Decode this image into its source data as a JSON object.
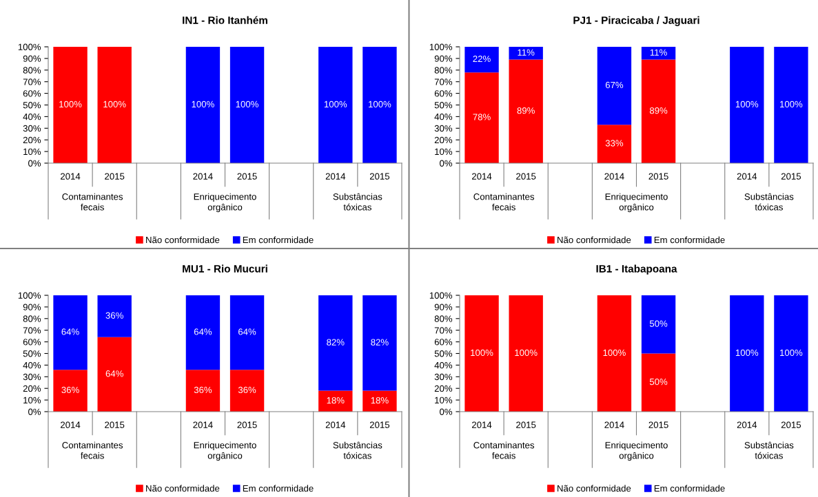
{
  "chart_data": [
    {
      "type": "bar",
      "title": "IN1 - Rio Itanhém",
      "stacked": true,
      "legend": "bottom",
      "grid": false,
      "categories": [
        "2014",
        "2015",
        null,
        "2014",
        "2015",
        null,
        "2014",
        "2015"
      ],
      "annotations": [
        "Contaminantes\nfecais",
        "Enriquecimento\norgânico",
        "Substâncias\ntóxicas"
      ],
      "ylim": [
        0,
        100
      ],
      "yticks": [
        {
          "value": 0,
          "label": "0%"
        },
        {
          "value": 10,
          "label": "10%"
        },
        {
          "value": 20,
          "label": "20%"
        },
        {
          "value": 30,
          "label": "30%"
        },
        {
          "value": 40,
          "label": "40%"
        },
        {
          "value": 50,
          "label": "50%"
        },
        {
          "value": 60,
          "label": "60%"
        },
        {
          "value": 70,
          "label": "70%"
        },
        {
          "value": 80,
          "label": "80%"
        },
        {
          "value": 90,
          "label": "90%"
        },
        {
          "value": 100,
          "label": "100%"
        }
      ],
      "series": [
        {
          "name": "Não conformidade",
          "color": "#ff0000",
          "values": [
            100,
            100,
            null,
            0,
            0,
            null,
            0,
            0
          ],
          "value_labels": [
            "100%",
            "100%",
            null,
            null,
            null,
            null,
            null,
            null
          ]
        },
        {
          "name": "Em conformidade",
          "color": "#0000ff",
          "values": [
            0,
            0,
            null,
            100,
            100,
            null,
            100,
            100
          ],
          "value_labels": [
            null,
            null,
            null,
            "100%",
            "100%",
            null,
            "100%",
            "100%"
          ]
        }
      ]
    },
    {
      "type": "bar",
      "title": "PJ1 - Piracicaba / Jaguari",
      "stacked": true,
      "legend": "bottom",
      "grid": false,
      "categories": [
        "2014",
        "2015",
        null,
        "2014",
        "2015",
        null,
        "2014",
        "2015"
      ],
      "annotations": [
        "Contaminantes\nfecais",
        "Enriquecimento\norgânico",
        "Substâncias\ntóxicas"
      ],
      "ylim": [
        0,
        100
      ],
      "yticks": [
        {
          "value": 0,
          "label": "0%"
        },
        {
          "value": 10,
          "label": "10%"
        },
        {
          "value": 20,
          "label": "20%"
        },
        {
          "value": 30,
          "label": "30%"
        },
        {
          "value": 40,
          "label": "40%"
        },
        {
          "value": 50,
          "label": "50%"
        },
        {
          "value": 60,
          "label": "60%"
        },
        {
          "value": 70,
          "label": "70%"
        },
        {
          "value": 80,
          "label": "80%"
        },
        {
          "value": 90,
          "label": "90%"
        },
        {
          "value": 100,
          "label": "100%"
        }
      ],
      "series": [
        {
          "name": "Não conformidade",
          "color": "#ff0000",
          "values": [
            78,
            89,
            null,
            33,
            89,
            null,
            0,
            0
          ],
          "value_labels": [
            "78%",
            "89%",
            null,
            "33%",
            "89%",
            null,
            null,
            null
          ]
        },
        {
          "name": "Em conformidade",
          "color": "#0000ff",
          "values": [
            22,
            11,
            null,
            67,
            11,
            null,
            100,
            100
          ],
          "value_labels": [
            "22%",
            "11%",
            null,
            "67%",
            "11%",
            null,
            "100%",
            "100%"
          ]
        }
      ]
    },
    {
      "type": "bar",
      "title": "MU1 - Rio Mucuri",
      "stacked": true,
      "legend": "bottom",
      "grid": false,
      "categories": [
        "2014",
        "2015",
        null,
        "2014",
        "2015",
        null,
        "2014",
        "2015"
      ],
      "annotations": [
        "Contaminantes\nfecais",
        "Enriquecimento\norgânico",
        "Substâncias\ntóxicas"
      ],
      "ylim": [
        0,
        100
      ],
      "yticks": [
        {
          "value": 0,
          "label": "0%"
        },
        {
          "value": 10,
          "label": "10%"
        },
        {
          "value": 20,
          "label": "20%"
        },
        {
          "value": 30,
          "label": "30%"
        },
        {
          "value": 40,
          "label": "40%"
        },
        {
          "value": 50,
          "label": "50%"
        },
        {
          "value": 60,
          "label": "60%"
        },
        {
          "value": 70,
          "label": "70%"
        },
        {
          "value": 80,
          "label": "80%"
        },
        {
          "value": 90,
          "label": "90%"
        },
        {
          "value": 100,
          "label": "100%"
        }
      ],
      "series": [
        {
          "name": "Não conformidade",
          "color": "#ff0000",
          "values": [
            36,
            64,
            null,
            36,
            36,
            null,
            18,
            18
          ],
          "value_labels": [
            "36%",
            "64%",
            null,
            "36%",
            "36%",
            null,
            "18%",
            "18%"
          ]
        },
        {
          "name": "Em conformidade",
          "color": "#0000ff",
          "values": [
            64,
            36,
            null,
            64,
            64,
            null,
            82,
            82
          ],
          "value_labels": [
            "64%",
            "36%",
            null,
            "64%",
            "64%",
            null,
            "82%",
            "82%"
          ]
        }
      ]
    },
    {
      "type": "bar",
      "title": "IB1 - Itabapoana",
      "stacked": true,
      "legend": "bottom",
      "grid": false,
      "categories": [
        "2014",
        "2015",
        null,
        "2014",
        "2015",
        null,
        "2014",
        "2015"
      ],
      "annotations": [
        "Contaminantes\nfecais",
        "Enriquecimento\norgânico",
        "Substâncias\ntóxicas"
      ],
      "ylim": [
        0,
        100
      ],
      "yticks": [
        {
          "value": 0,
          "label": "0%"
        },
        {
          "value": 10,
          "label": "10%"
        },
        {
          "value": 20,
          "label": "20%"
        },
        {
          "value": 30,
          "label": "30%"
        },
        {
          "value": 40,
          "label": "40%"
        },
        {
          "value": 50,
          "label": "50%"
        },
        {
          "value": 60,
          "label": "60%"
        },
        {
          "value": 70,
          "label": "70%"
        },
        {
          "value": 80,
          "label": "80%"
        },
        {
          "value": 90,
          "label": "90%"
        },
        {
          "value": 100,
          "label": "100%"
        }
      ],
      "series": [
        {
          "name": "Não conformidade",
          "color": "#ff0000",
          "values": [
            100,
            100,
            null,
            100,
            50,
            null,
            0,
            0
          ],
          "value_labels": [
            "100%",
            "100%",
            null,
            "100%",
            "50%",
            null,
            null,
            null
          ]
        },
        {
          "name": "Em conformidade",
          "color": "#0000ff",
          "values": [
            0,
            0,
            null,
            0,
            50,
            null,
            100,
            100
          ],
          "value_labels": [
            null,
            null,
            null,
            null,
            "50%",
            null,
            "100%",
            "100%"
          ]
        }
      ]
    }
  ]
}
